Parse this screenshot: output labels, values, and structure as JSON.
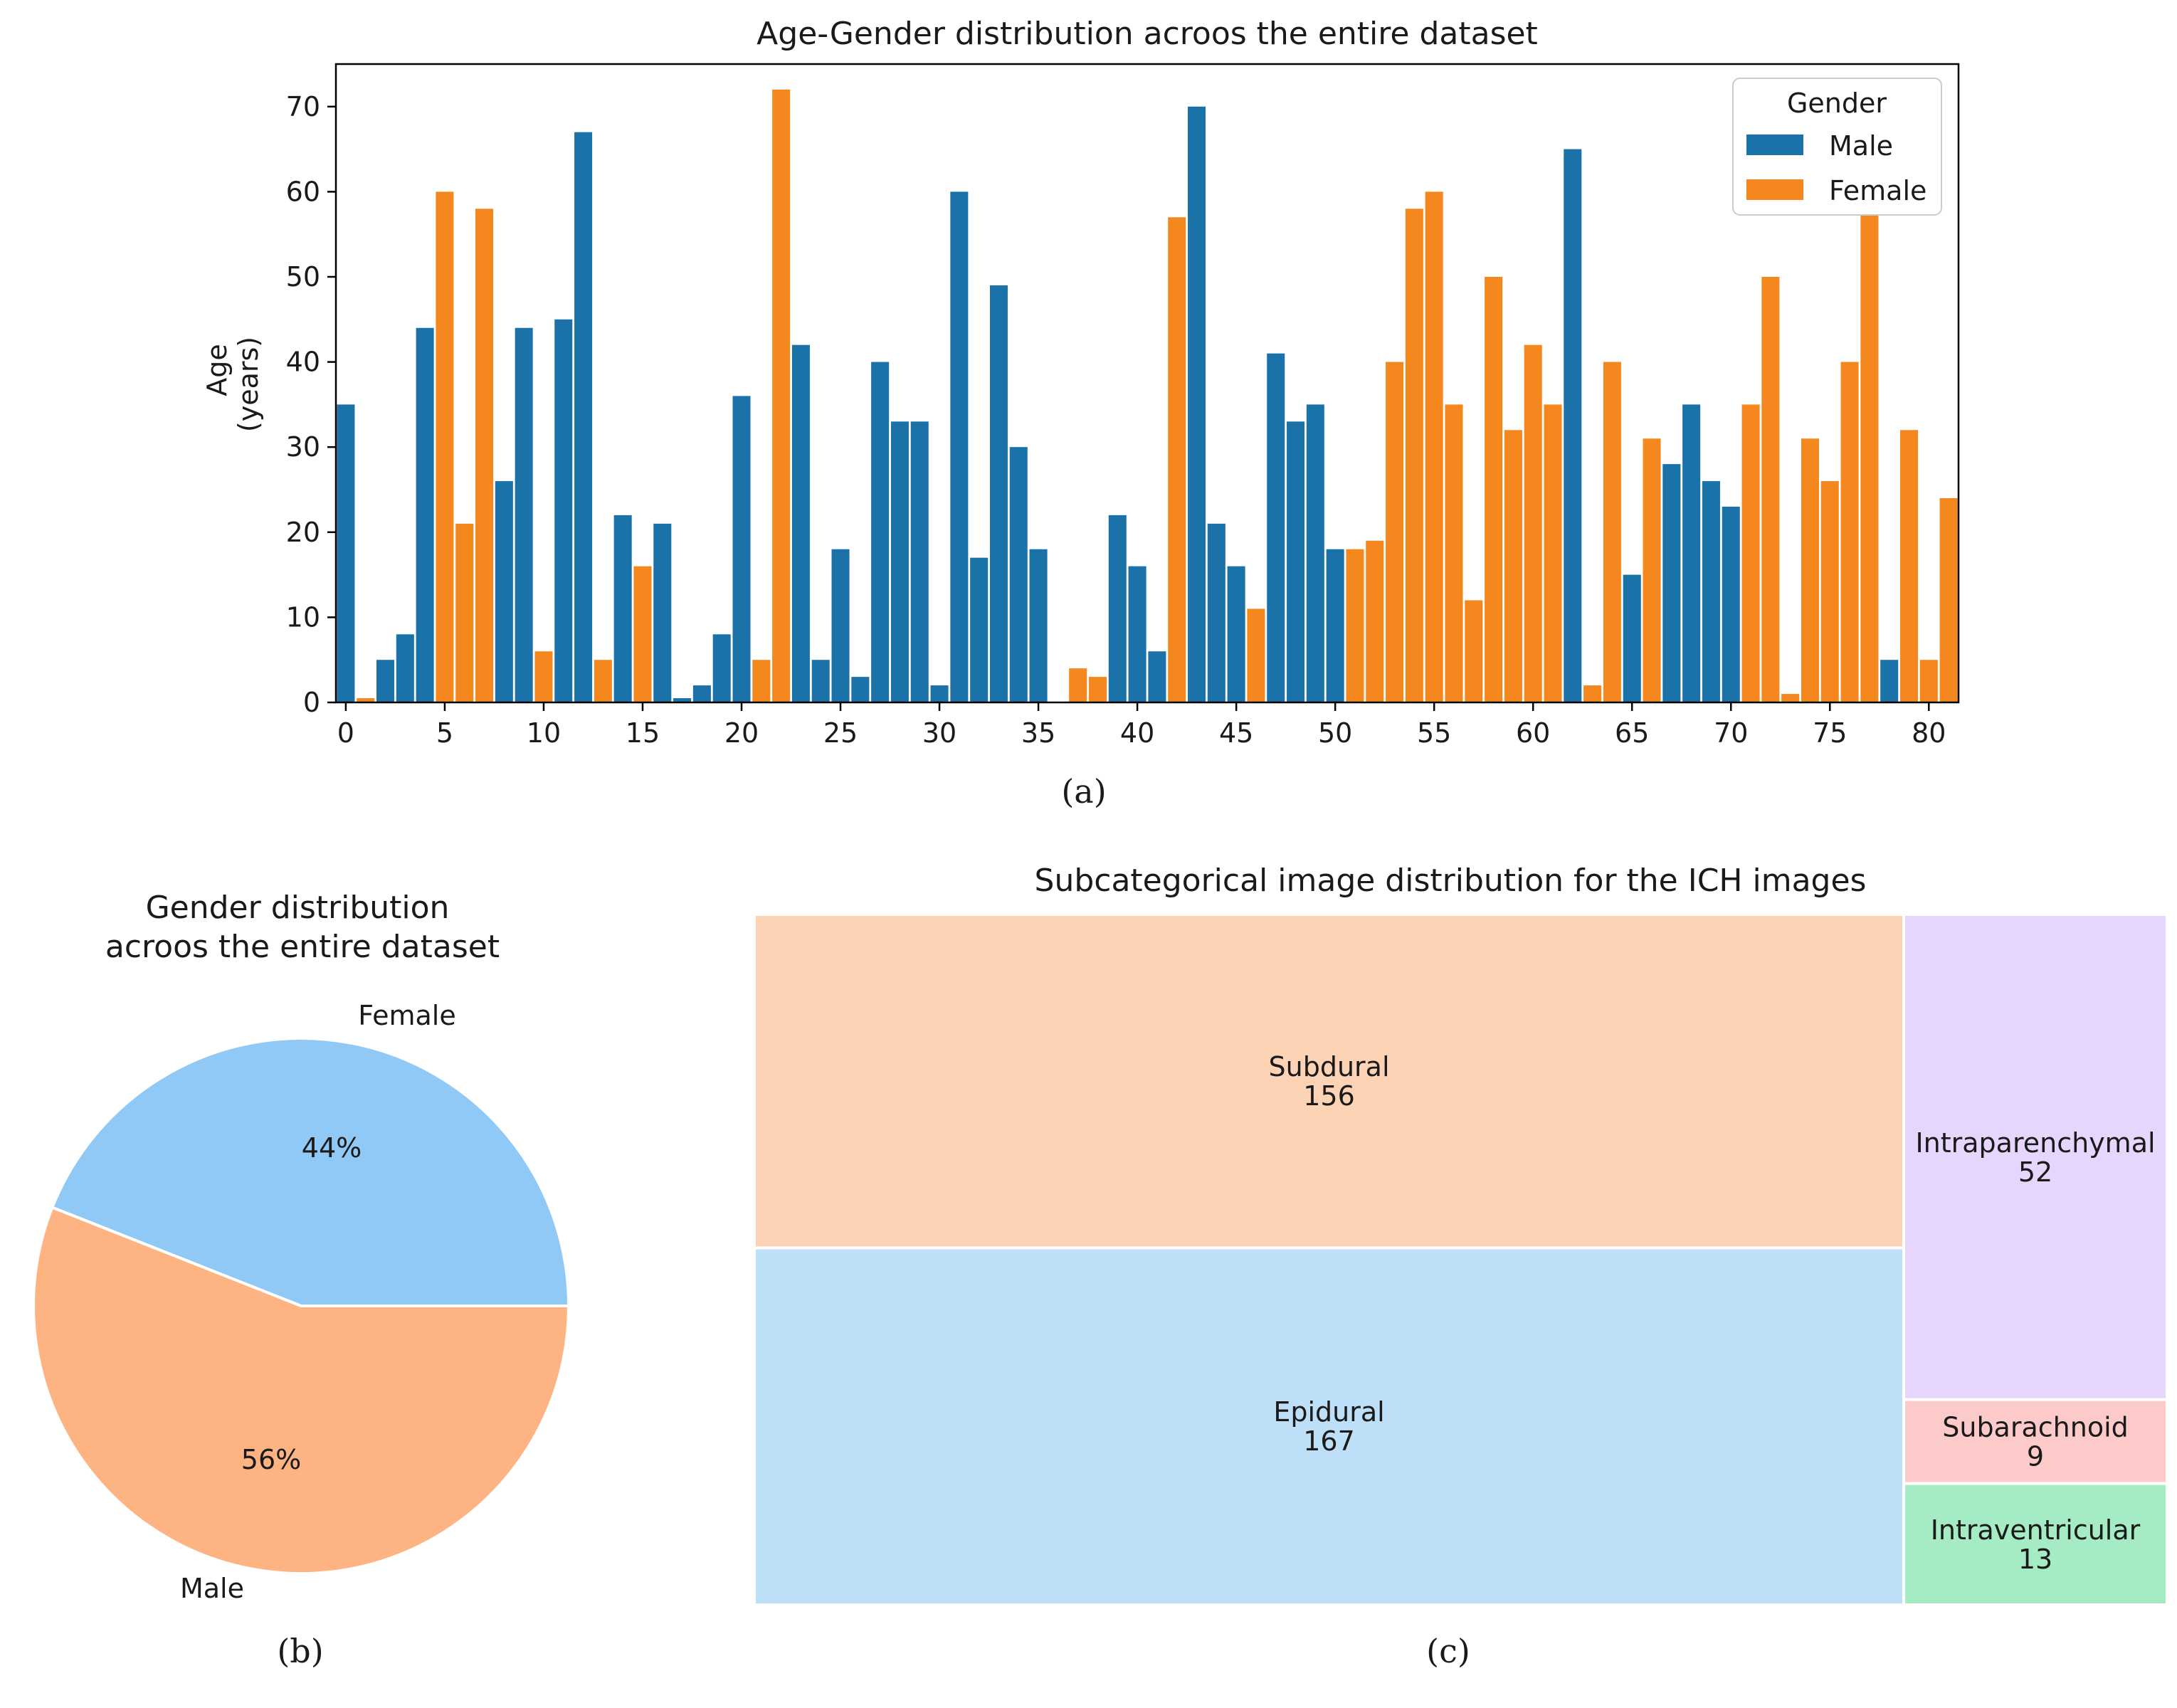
{
  "chart_data": [
    {
      "type": "bar",
      "panel_label": "(a)",
      "title": "Age-Gender distribution acroos the entire dataset",
      "xlabel": "",
      "ylabel_line1": "Age",
      "ylabel_line2": "(years)",
      "xlim": [
        -0.5,
        81.5
      ],
      "ylim": [
        0,
        75
      ],
      "grid": false,
      "x_ticks": [
        0,
        5,
        10,
        15,
        20,
        25,
        30,
        35,
        40,
        45,
        50,
        55,
        60,
        65,
        70,
        75,
        80
      ],
      "x_tick_labels": [
        "0",
        "5",
        "10",
        "15",
        "20",
        "25",
        "30",
        "35",
        "40",
        "45",
        "50",
        "55",
        "60",
        "65",
        "70",
        "75",
        "80"
      ],
      "y_ticks": [
        0,
        10,
        20,
        30,
        40,
        50,
        60,
        70
      ],
      "y_tick_labels": [
        "0",
        "10",
        "20",
        "30",
        "40",
        "50",
        "60",
        "70"
      ],
      "legend": {
        "title": "Gender",
        "position": "top-right"
      },
      "series": [
        {
          "name": "Male",
          "color": "#1b72a8",
          "points": [
            [
              0,
              35
            ],
            [
              2,
              5
            ],
            [
              3,
              8
            ],
            [
              4,
              44
            ],
            [
              8,
              26
            ],
            [
              9,
              44
            ],
            [
              11,
              45
            ],
            [
              12,
              67
            ],
            [
              14,
              22
            ],
            [
              16,
              21
            ],
            [
              17,
              0.5
            ],
            [
              18,
              2
            ],
            [
              19,
              8
            ],
            [
              20,
              36
            ],
            [
              23,
              42
            ],
            [
              24,
              5
            ],
            [
              25,
              18
            ],
            [
              26,
              3
            ],
            [
              27,
              40
            ],
            [
              28,
              33
            ],
            [
              29,
              33
            ],
            [
              30,
              2
            ],
            [
              31,
              60
            ],
            [
              32,
              17
            ],
            [
              33,
              49
            ],
            [
              34,
              30
            ],
            [
              35,
              18
            ],
            [
              39,
              22
            ],
            [
              40,
              16
            ],
            [
              41,
              6
            ],
            [
              43,
              70
            ],
            [
              44,
              21
            ],
            [
              45,
              16
            ],
            [
              47,
              41
            ],
            [
              48,
              33
            ],
            [
              49,
              35
            ],
            [
              50,
              18
            ],
            [
              62,
              65
            ],
            [
              65,
              15
            ],
            [
              67,
              28
            ],
            [
              68,
              35
            ],
            [
              69,
              26
            ],
            [
              70,
              23
            ],
            [
              78,
              5
            ]
          ]
        },
        {
          "name": "Female",
          "color": "#f5871f",
          "points": [
            [
              1,
              0.5
            ],
            [
              5,
              60
            ],
            [
              6,
              21
            ],
            [
              7,
              58
            ],
            [
              10,
              6
            ],
            [
              13,
              5
            ],
            [
              15,
              16
            ],
            [
              21,
              5
            ],
            [
              22,
              72
            ],
            [
              37,
              4
            ],
            [
              38,
              3
            ],
            [
              42,
              57
            ],
            [
              46,
              11
            ],
            [
              51,
              18
            ],
            [
              52,
              19
            ],
            [
              53,
              40
            ],
            [
              54,
              58
            ],
            [
              55,
              60
            ],
            [
              56,
              35
            ],
            [
              57,
              12
            ],
            [
              58,
              50
            ],
            [
              59,
              32
            ],
            [
              60,
              42
            ],
            [
              61,
              35
            ],
            [
              63,
              2
            ],
            [
              64,
              40
            ],
            [
              66,
              31
            ],
            [
              71,
              35
            ],
            [
              72,
              50
            ],
            [
              73,
              1
            ],
            [
              74,
              31
            ],
            [
              75,
              26
            ],
            [
              76,
              40
            ],
            [
              77,
              58
            ],
            [
              79,
              32
            ],
            [
              80,
              5
            ],
            [
              81,
              24
            ]
          ]
        }
      ]
    },
    {
      "type": "pie",
      "panel_label": "(b)",
      "title_line1": "Gender distribution",
      "title_line2": "acroos the entire dataset",
      "slices": [
        {
          "label": "Female",
          "value": 44,
          "pct_label": "44%",
          "color": "#90c9f5"
        },
        {
          "label": "Male",
          "value": 56,
          "pct_label": "56%",
          "color": "#fdb482"
        }
      ]
    },
    {
      "type": "treemap",
      "panel_label": "(c)",
      "title": "Subcategorical image distribution for the ICH images",
      "cells": [
        {
          "label": "Subdural",
          "value": 156,
          "color": "#fdd3b5"
        },
        {
          "label": "Epidural",
          "value": 167,
          "color": "#bddff8"
        },
        {
          "label": "Intraparenchymal",
          "value": 52,
          "color": "#e6d5fd"
        },
        {
          "label": "Subarachnoid",
          "value": 9,
          "color": "#fdcaca"
        },
        {
          "label": "Intraventricular",
          "value": 13,
          "color": "#a5ebc3"
        }
      ]
    }
  ]
}
